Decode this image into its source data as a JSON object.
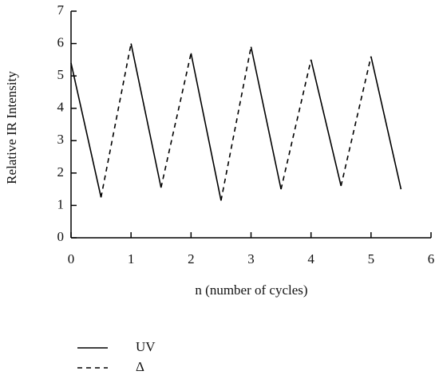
{
  "chart_data": {
    "type": "line",
    "xlabel": "n (number of cycles)",
    "ylabel": "Relative IR Intensity",
    "xlim": [
      0,
      6
    ],
    "xticks": [
      0,
      1,
      2,
      3,
      4,
      5,
      6
    ],
    "ylim": [
      0,
      7
    ],
    "yticks": [
      0,
      1,
      2,
      3,
      4,
      5,
      6,
      7
    ],
    "legend": "bottom",
    "series": [
      {
        "name": "UV",
        "color": "#000000",
        "dash": "solid",
        "x": [
          0,
          0.5,
          0.5,
          1,
          1.5,
          1.5,
          2,
          2.5,
          2.5,
          3,
          3.5,
          3.5,
          4,
          4.5,
          4.5,
          5,
          5.5
        ],
        "values": [
          5.4,
          1.25,
          null,
          6.0,
          1.55,
          null,
          5.7,
          1.15,
          null,
          5.9,
          1.5,
          null,
          5.5,
          1.6,
          null,
          5.6,
          1.5
        ]
      },
      {
        "name": "Δ",
        "color": "#000000",
        "dash": "dashed",
        "x": [
          0.5,
          1,
          1,
          1.5,
          2,
          2,
          2.5,
          3,
          3,
          3.5,
          4,
          4,
          4.5,
          5
        ],
        "values": [
          1.25,
          6.0,
          null,
          1.55,
          5.7,
          null,
          1.15,
          5.9,
          null,
          1.5,
          5.5,
          null,
          1.6,
          5.6
        ]
      }
    ]
  }
}
